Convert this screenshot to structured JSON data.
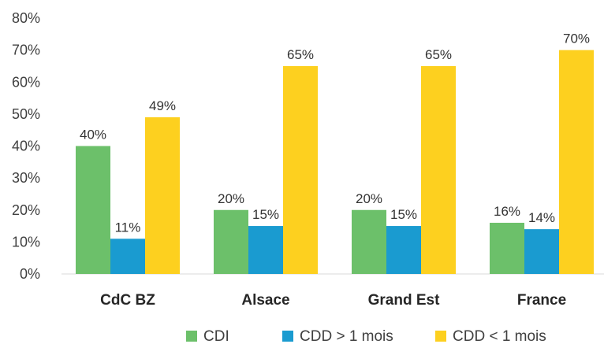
{
  "chart_data": {
    "type": "bar",
    "categories": [
      "CdC BZ",
      "Alsace",
      "Grand Est",
      "France"
    ],
    "series": [
      {
        "name": "CDI",
        "color": "#6cc06a",
        "values": [
          40,
          20,
          20,
          16
        ],
        "labels": [
          "40%",
          "20%",
          "20%",
          "16%"
        ]
      },
      {
        "name": "CDD > 1 mois",
        "color": "#1a9bd0",
        "values": [
          11,
          15,
          15,
          14
        ],
        "labels": [
          "11%",
          "15%",
          "15%",
          "14%"
        ]
      },
      {
        "name": "CDD < 1 mois",
        "color": "#fdd01f",
        "values": [
          49,
          65,
          65,
          70
        ],
        "labels": [
          "49%",
          "65%",
          "65%",
          "70%"
        ]
      }
    ],
    "yticks": [
      "0%",
      "10%",
      "20%",
      "30%",
      "40%",
      "50%",
      "60%",
      "70%",
      "80%"
    ],
    "ylim": [
      0,
      80
    ],
    "grid": false,
    "legend_position": "bottom"
  }
}
